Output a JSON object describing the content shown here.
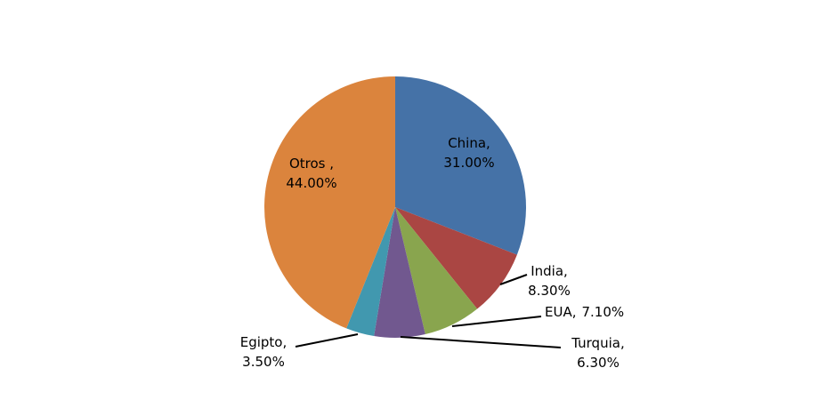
{
  "chart_data": {
    "type": "pie",
    "categories": [
      "China,",
      "India,",
      "EUA,",
      "Turquia,",
      "Egipto,",
      "Otros ,"
    ],
    "values": [
      31.0,
      8.3,
      7.1,
      6.3,
      3.5,
      44.0
    ],
    "value_labels": [
      "31.00%",
      "8.30%",
      "7.10%",
      "6.30%",
      "3.50%",
      "44.00%"
    ],
    "colors": [
      "#4572a7",
      "#aa4643",
      "#89a54e",
      "#71588f",
      "#4198af",
      "#db843d"
    ]
  }
}
